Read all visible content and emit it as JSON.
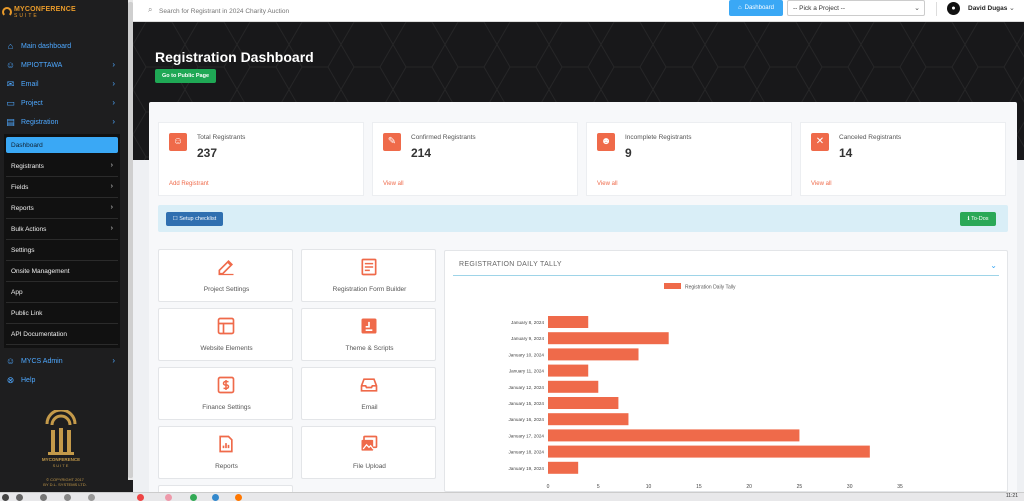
{
  "brand": {
    "name": "MYCONFERENCE",
    "sub": "SUITE"
  },
  "sidebar": {
    "items": [
      {
        "label": "Main dashboard",
        "icon": "home-icon",
        "has_chevron": false
      },
      {
        "label": "MPIOTTAWA",
        "icon": "user-icon",
        "has_chevron": true
      },
      {
        "label": "Email",
        "icon": "mail-icon",
        "has_chevron": true
      },
      {
        "label": "Project",
        "icon": "folder-icon",
        "has_chevron": true
      },
      {
        "label": "Registration",
        "icon": "clipboard-icon",
        "has_chevron": true
      }
    ],
    "submenu": [
      {
        "label": "Dashboard",
        "active": true,
        "has_chevron": false
      },
      {
        "label": "Registrants",
        "active": false,
        "has_chevron": true
      },
      {
        "label": "Fields",
        "active": false,
        "has_chevron": true
      },
      {
        "label": "Reports",
        "active": false,
        "has_chevron": true
      },
      {
        "label": "Bulk Actions",
        "active": false,
        "has_chevron": true
      },
      {
        "label": "Settings",
        "active": false,
        "has_chevron": false
      },
      {
        "label": "Onsite Management",
        "active": false,
        "has_chevron": false
      },
      {
        "label": "App",
        "active": false,
        "has_chevron": false
      },
      {
        "label": "Public Link",
        "active": false,
        "has_chevron": false
      },
      {
        "label": "API Documentation",
        "active": false,
        "has_chevron": false
      }
    ],
    "bottom_items": [
      {
        "label": "MYCS Admin",
        "icon": "user-icon",
        "has_chevron": true
      },
      {
        "label": "Help",
        "icon": "help-icon",
        "has_chevron": false
      }
    ],
    "footer_logo": {
      "name": "MYCONFERENCE",
      "sub": "SUITE"
    },
    "footer_text": [
      "© COPYRIGHT 2017",
      "BY D.L. SYSTEMS LTD."
    ]
  },
  "topbar": {
    "search_placeholder": "Search for Registrant in 2024 Charity Auction",
    "dashboard_label": "Dashboard",
    "project_select": "-- Pick a Project --",
    "user_name": "David Dugas"
  },
  "hero": {
    "title": "Registration Dashboard",
    "public_button": "Go to Public Page"
  },
  "stats": [
    {
      "label": "Total Registrants",
      "value": "237",
      "link": "Add Registrant",
      "icon": "users-icon"
    },
    {
      "label": "Confirmed Registrants",
      "value": "214",
      "link": "View all",
      "icon": "user-check-icon"
    },
    {
      "label": "Incomplete Registrants",
      "value": "9",
      "link": "View all",
      "icon": "user-minus-icon"
    },
    {
      "label": "Canceled Registrants",
      "value": "14",
      "link": "View all",
      "icon": "user-x-icon"
    }
  ],
  "checklist": {
    "setup_label": "Setup checklist",
    "todo_label": "To-Dos"
  },
  "tiles": [
    {
      "label": "Project Settings",
      "icon": "edit-icon"
    },
    {
      "label": "Registration Form Builder",
      "icon": "form-icon"
    },
    {
      "label": "Website Elements",
      "icon": "layout-icon"
    },
    {
      "label": "Theme & Scripts",
      "icon": "theme-icon"
    },
    {
      "label": "Finance Settings",
      "icon": "dollar-icon"
    },
    {
      "label": "Email",
      "icon": "inbox-icon"
    },
    {
      "label": "Reports",
      "icon": "report-icon"
    },
    {
      "label": "File Upload",
      "icon": "image-icon"
    }
  ],
  "chart_panel": {
    "title": "REGISTRATION DAILY TALLY"
  },
  "chart_data": {
    "type": "bar",
    "orientation": "horizontal",
    "title": "",
    "categories": [
      "January 8, 2024",
      "January 9, 2024",
      "January 10, 2024",
      "January 11, 2024",
      "January 12, 2024",
      "January 15, 2024",
      "January 16, 2024",
      "January 17, 2024",
      "January 18, 2024",
      "January 19, 2024"
    ],
    "series": [
      {
        "name": "Registration Daily Tally",
        "values": [
          4,
          12,
          9,
          4,
          5,
          7,
          8,
          25,
          32,
          3
        ]
      }
    ],
    "xlim": [
      0,
      35
    ],
    "xticks": [
      0,
      5,
      10,
      15,
      20,
      25,
      30,
      35
    ],
    "legend": "top-center",
    "grid": false,
    "color": "#ef6a4a"
  },
  "taskbar": {
    "time": "11:21"
  },
  "colors": {
    "accent": "#3aa8f5",
    "orange": "#ef6a4a",
    "green": "#1fa855",
    "sidebar_bg": "#1e1e1f"
  }
}
